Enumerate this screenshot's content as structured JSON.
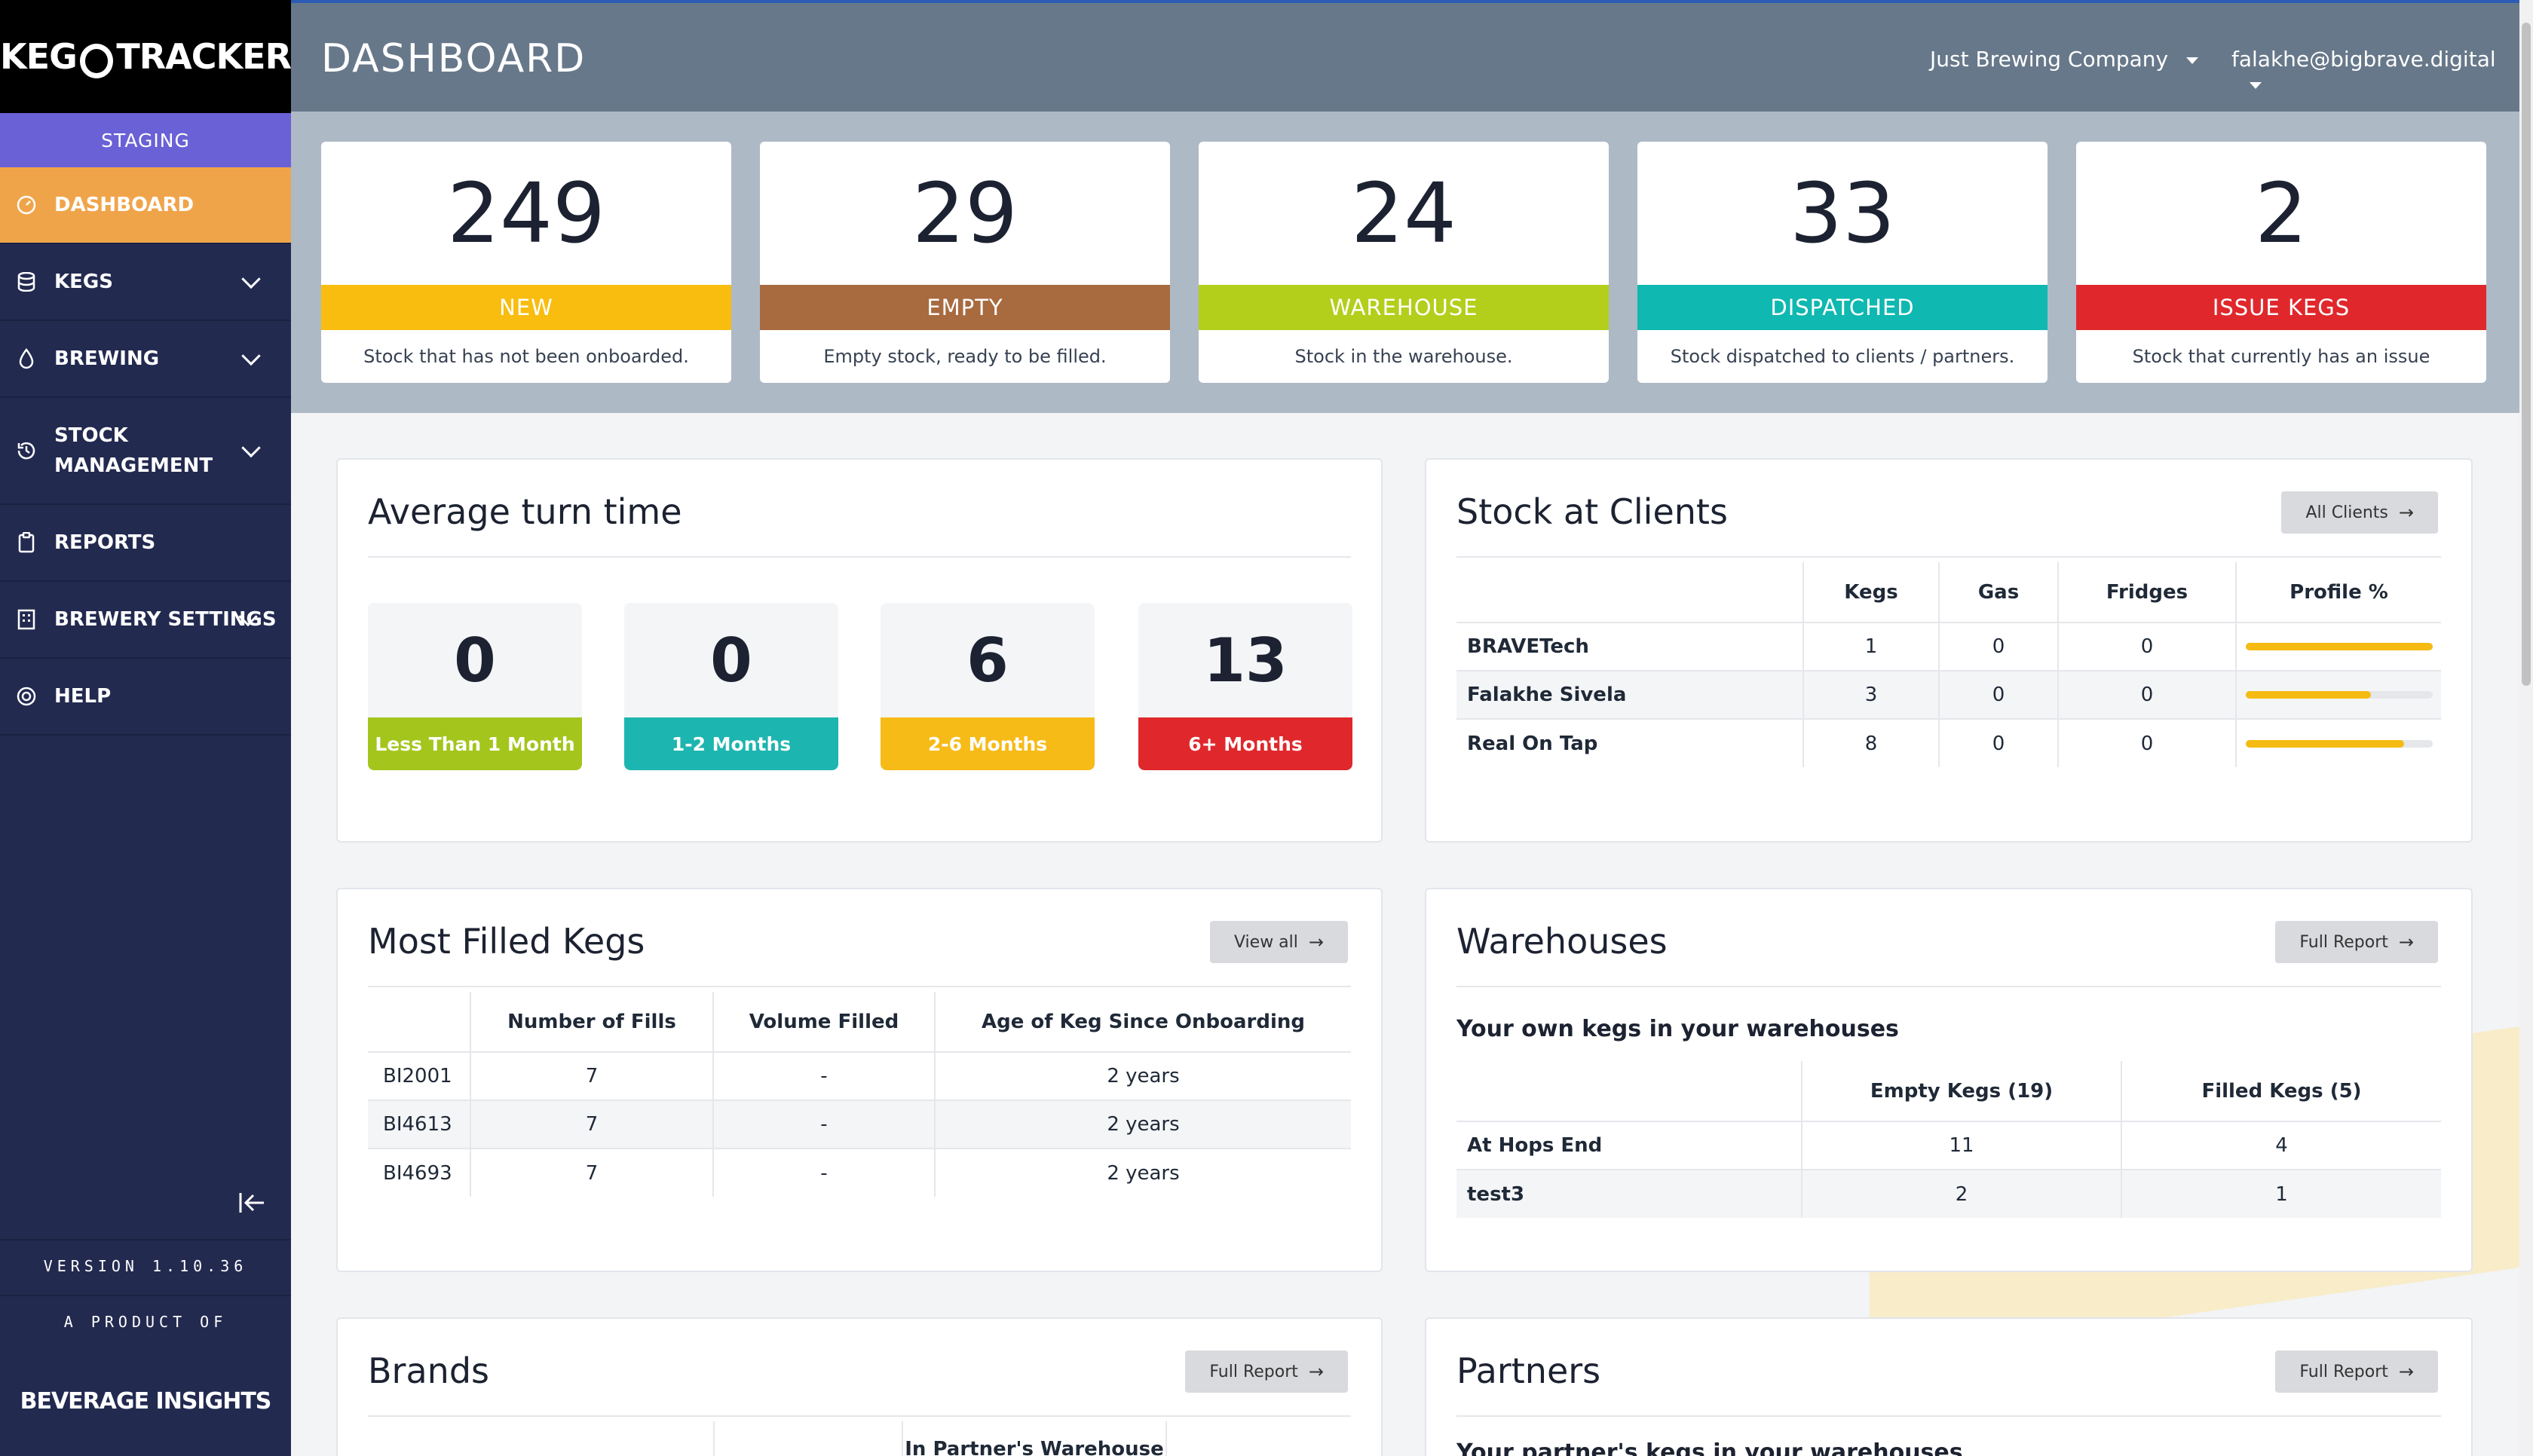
{
  "logo": {
    "text": "KEGTRACKER"
  },
  "env": "STAGING",
  "nav": {
    "dashboard": "DASHBOARD",
    "kegs": "KEGS",
    "brewing": "BREWING",
    "stock_line1": "STOCK",
    "stock_line2": "MANAGEMENT",
    "reports": "REPORTS",
    "brewery_settings": "BREWERY SETTINGS",
    "help": "HELP"
  },
  "sidebar_footer": {
    "version": "VERSION 1.10.36",
    "product_of": "A PRODUCT OF",
    "brand": "BEVERAGE INSIGHTS"
  },
  "header": {
    "title": "DASHBOARD",
    "company": "Just Brewing Company",
    "user": "falakhe@bigbrave.digital"
  },
  "stats": [
    {
      "value": "249",
      "label": "NEW",
      "desc": "Stock that has not been onboarded.",
      "color": "#f8bd0f"
    },
    {
      "value": "29",
      "label": "EMPTY",
      "desc": "Empty stock, ready to be filled.",
      "color": "#a86a3f"
    },
    {
      "value": "24",
      "label": "WAREHOUSE",
      "desc": "Stock in the warehouse.",
      "color": "#b3cf1b"
    },
    {
      "value": "33",
      "label": "DISPATCHED",
      "desc": "Stock dispatched to clients / partners.",
      "color": "#0fb8b0"
    },
    {
      "value": "2",
      "label": "ISSUE KEGS",
      "desc": "Stock that currently has an issue",
      "color": "#e0282c"
    }
  ],
  "turn_time": {
    "title": "Average turn time",
    "items": [
      {
        "value": "0",
        "label": "Less Than 1 Month",
        "color": "#a4c51c"
      },
      {
        "value": "0",
        "label": "1-2 Months",
        "color": "#1db5b0"
      },
      {
        "value": "6",
        "label": "2-6 Months",
        "color": "#f7bb17"
      },
      {
        "value": "13",
        "label": "6+ Months",
        "color": "#e0282c"
      }
    ]
  },
  "stock_clients": {
    "title": "Stock at Clients",
    "button": "All Clients",
    "headers": [
      "",
      "Kegs",
      "Gas",
      "Fridges",
      "Profile %"
    ],
    "rows": [
      {
        "name": "BRAVETech",
        "kegs": "1",
        "gas": "0",
        "fridges": "0",
        "profile": 1.0
      },
      {
        "name": "Falakhe Sivela",
        "kegs": "3",
        "gas": "0",
        "fridges": "0",
        "profile": 0.67
      },
      {
        "name": "Real On Tap",
        "kegs": "8",
        "gas": "0",
        "fridges": "0",
        "profile": 0.85
      }
    ]
  },
  "filled_kegs": {
    "title": "Most Filled Kegs",
    "button": "View all",
    "headers": [
      "",
      "Number of Fills",
      "Volume Filled",
      "Age of Keg Since Onboarding"
    ],
    "rows": [
      {
        "id": "BI2001",
        "fills": "7",
        "volume": "-",
        "age": "2 years"
      },
      {
        "id": "BI4613",
        "fills": "7",
        "volume": "-",
        "age": "2 years"
      },
      {
        "id": "BI4693",
        "fills": "7",
        "volume": "-",
        "age": "2 years"
      }
    ]
  },
  "warehouses": {
    "title": "Warehouses",
    "button": "Full Report",
    "subtitle": "Your own kegs in your warehouses",
    "headers": [
      "",
      "Empty Kegs (19)",
      "Filled Kegs (5)"
    ],
    "rows": [
      {
        "name": "At Hops End",
        "empty": "11",
        "filled": "4"
      },
      {
        "name": "test3",
        "empty": "2",
        "filled": "1"
      }
    ]
  },
  "brands": {
    "title": "Brands",
    "button": "Full Report",
    "partial_header": "In Partner's Warehouse"
  },
  "partners": {
    "title": "Partners",
    "button": "Full Report",
    "partial_subtitle": "Your partner's kegs in your warehouses"
  }
}
